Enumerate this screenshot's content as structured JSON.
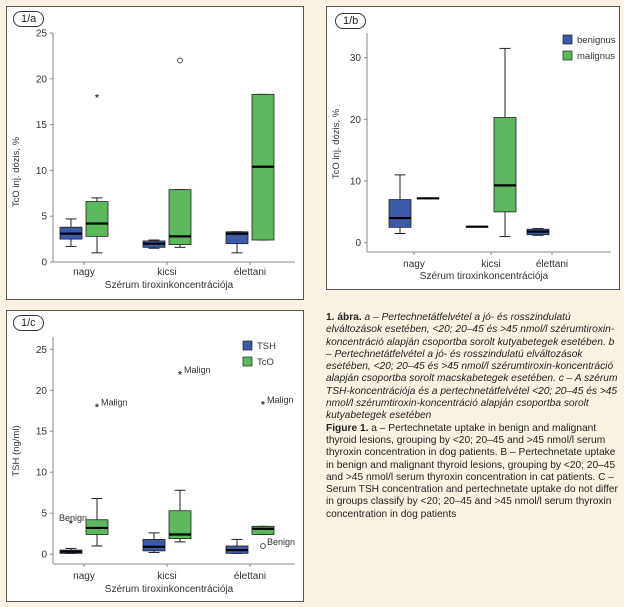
{
  "chart_data": [
    {
      "type": "box",
      "panel_label": "1/a",
      "ylabel": "TcO inj. dózis, %",
      "xlabel": "Szérum tiroxinkoncentrációja",
      "categories": [
        "nagy",
        "kicsi",
        "élettani"
      ],
      "yticks": [
        0,
        5,
        10,
        15,
        20,
        25
      ],
      "ylim": [
        0,
        25
      ],
      "series": [
        {
          "color": "#3d5aa8",
          "boxes": [
            {
              "whisker_low": 1.7,
              "q1": 2.5,
              "median": 3.1,
              "q3": 3.8,
              "whisker_high": 4.7
            },
            {
              "whisker_low": 1.5,
              "q1": 1.6,
              "median": 2.0,
              "q3": 2.3,
              "whisker_high": 2.4
            },
            {
              "whisker_low": 1.0,
              "q1": 2.0,
              "median": 3.1,
              "q3": 3.3,
              "whisker_high": 3.3
            }
          ]
        },
        {
          "color": "#5cb85c",
          "boxes": [
            {
              "whisker_low": 1.0,
              "q1": 2.8,
              "median": 4.2,
              "q3": 6.6,
              "whisker_high": 7.0,
              "outliers": [
                {
                  "y": 18.0,
                  "marker": "*"
                }
              ]
            },
            {
              "whisker_low": 1.6,
              "q1": 1.9,
              "median": 2.8,
              "q3": 7.9,
              "whisker_high": 7.9,
              "outliers": [
                {
                  "y": 22.0,
                  "marker": "o"
                }
              ]
            },
            {
              "whisker_low": 2.4,
              "q1": 2.4,
              "median": 10.4,
              "q3": 18.3,
              "whisker_high": 18.3
            }
          ]
        }
      ]
    },
    {
      "type": "box",
      "panel_label": "1/b",
      "ylabel": "TcO inj. dózis, %",
      "xlabel": "Szérum tiroxinkoncentrációja",
      "categories": [
        "nagy",
        "kicsi",
        "élettani"
      ],
      "yticks": [
        0,
        10,
        20,
        30
      ],
      "ylim": [
        -1.5,
        34
      ],
      "legend": {
        "position": "top-right",
        "entries": [
          "benignus",
          "malignus"
        ]
      },
      "series": [
        {
          "name": "benignus",
          "color": "#3d5aa8",
          "boxes": [
            {
              "whisker_low": 1.5,
              "q1": 2.5,
              "median": 4.0,
              "q3": 7.0,
              "whisker_high": 11.0
            },
            {
              "whisker_low": 2.6,
              "q1": 2.6,
              "median": 2.6,
              "q3": 2.6,
              "whisker_high": 2.6
            },
            {
              "whisker_low": 1.2,
              "q1": 1.3,
              "median": 1.8,
              "q3": 2.2,
              "whisker_high": 2.3
            }
          ]
        },
        {
          "name": "malignus",
          "color": "#5cb85c",
          "boxes": [
            {
              "whisker_low": 7.2,
              "q1": 7.2,
              "median": 7.2,
              "q3": 7.2,
              "whisker_high": 7.2
            },
            {
              "whisker_low": 1.0,
              "q1": 5.0,
              "median": 9.3,
              "q3": 20.3,
              "whisker_high": 31.5
            },
            null
          ]
        }
      ]
    },
    {
      "type": "box",
      "panel_label": "1/c",
      "ylabel": "TSH (ng/ml)",
      "xlabel": "Szérum tiroxinkoncentrációja",
      "categories": [
        "nagy",
        "kicsi",
        "élettani"
      ],
      "yticks": [
        0,
        5,
        10,
        15,
        20,
        25
      ],
      "ylim": [
        -1.2,
        26.5
      ],
      "legend": {
        "position": "top-right",
        "entries": [
          "TSH",
          "TcO"
        ]
      },
      "series": [
        {
          "name": "TSH",
          "color": "#3d5aa8",
          "boxes": [
            {
              "whisker_low": 0.1,
              "q1": 0.1,
              "median": 0.3,
              "q3": 0.5,
              "whisker_high": 0.7,
              "outliers": [
                {
                  "y": 3.8,
                  "marker": "*",
                  "label": "Benign"
                }
              ]
            },
            {
              "whisker_low": 0.2,
              "q1": 0.4,
              "median": 0.9,
              "q3": 1.8,
              "whisker_high": 2.6
            },
            {
              "whisker_low": 0.1,
              "q1": 0.1,
              "median": 0.5,
              "q3": 1.0,
              "whisker_high": 1.8
            }
          ]
        },
        {
          "name": "TcO",
          "color": "#5cb85c",
          "boxes": [
            {
              "whisker_low": 1.0,
              "q1": 2.4,
              "median": 3.2,
              "q3": 4.2,
              "whisker_high": 6.8,
              "outliers": [
                {
                  "y": 18.0,
                  "marker": "*",
                  "label": "Malign"
                }
              ]
            },
            {
              "whisker_low": 1.5,
              "q1": 1.9,
              "median": 2.4,
              "q3": 5.3,
              "whisker_high": 7.8,
              "outliers": [
                {
                  "y": 22.0,
                  "marker": "*",
                  "label": "Malign"
                }
              ]
            },
            {
              "whisker_low": 2.4,
              "q1": 2.4,
              "median": 3.1,
              "q3": 3.4,
              "whisker_high": 3.4,
              "outliers": [
                {
                  "y": 18.3,
                  "marker": "*",
                  "label": "Malign"
                },
                {
                  "y": 1.0,
                  "marker": "o",
                  "label": "Benign"
                }
              ]
            }
          ]
        }
      ]
    }
  ],
  "caption": {
    "figure_hu": "1. ábra.",
    "text_hu": " a – Pertechnetátfelvétel a jó- és rosszindulatú elváltozások esetében, <20; 20–45 és >45 nmol/l szérumtiroxin-koncentráció alapján csoportba sorolt kutyabetegek esetében. b – Pertechnetátfelvétel a jó- és rosszindulatú elváltozások esetében, <20; 20–45 és >45 nmol/l szérumtiroxin-koncentráció alapján csoportba sorolt macskabetegek esetében. c – A szérum TSH-koncentrációja és a pertechnetátfelvétel <20; 20–45 és >45 nmol/l szérumtiroxin-koncentráció alapján csoportba sorolt kutyabetegek esetében",
    "figure_en": "Figure 1.",
    "text_en": " a – Pertechnetate uptake in benign and malignant thyroid lesions, grouping by <20; 20–45 and >45 nmol/l serum thyroxin concentration in dog patients. B – Pertechnetate uptake in benign and malignant thyroid lesions, grouping by <20; 20–45 and >45 nmol/l serum thyroxin concentration in cat patients. C – Serum TSH concentration and pertechnetate uptake do not differ in groups classify by <20; 20–45 and >45 nmol/l serum thyroxin concentration in dog patients"
  }
}
